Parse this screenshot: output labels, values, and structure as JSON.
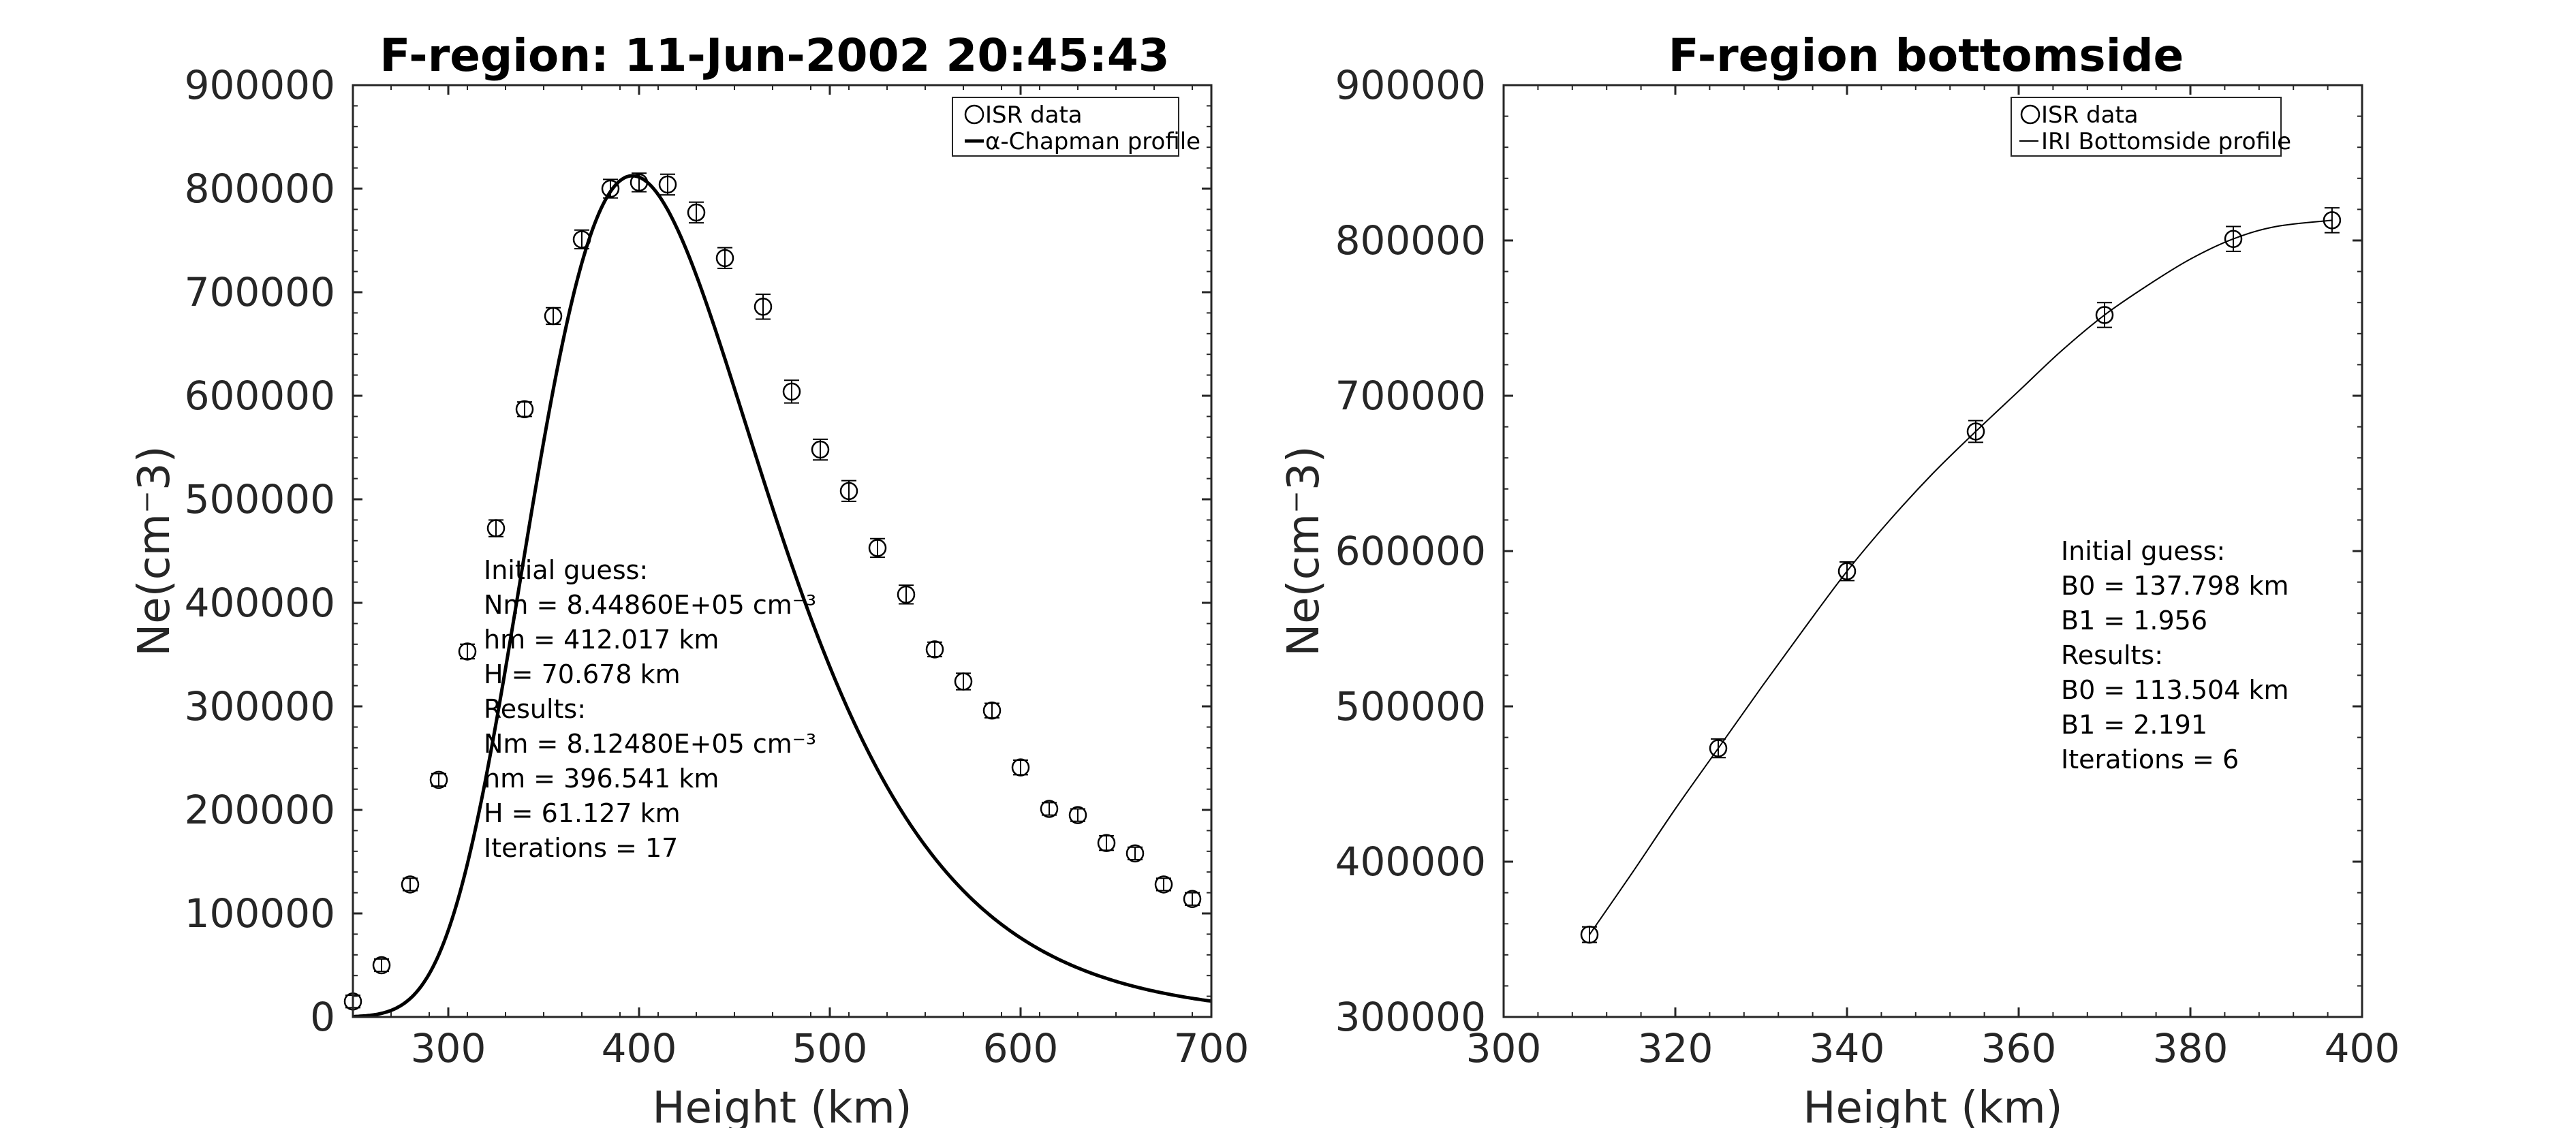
{
  "chart_data": [
    {
      "type": "scatter",
      "title": "F-region: 11-Jun-2002 20:45:43",
      "xlabel": "Height (km)",
      "ylabel": "Ne(cm⁻3)",
      "xlim": [
        250,
        700
      ],
      "ylim": [
        0,
        900000
      ],
      "xticks": [
        "300",
        "400",
        "500",
        "600",
        "700"
      ],
      "yticks": [
        "0",
        "100000",
        "200000",
        "300000",
        "400000",
        "500000",
        "600000",
        "700000",
        "800000",
        "900000"
      ],
      "legend_position": "top-right",
      "legend": [
        "ISR data",
        "α-Chapman profile"
      ],
      "series": [
        {
          "name": "ISR data",
          "marker": "open-circle-with-errorbar",
          "x": [
            250,
            265,
            280,
            295,
            310,
            325,
            340,
            355,
            370,
            385,
            400,
            415,
            430,
            445,
            465,
            480,
            495,
            510,
            525,
            540,
            555,
            570,
            585,
            600,
            615,
            630,
            645,
            660,
            675,
            690
          ],
          "y": [
            15000,
            50000,
            128000,
            229000,
            353000,
            472000,
            587000,
            677000,
            751000,
            800000,
            806000,
            804000,
            777000,
            733000,
            686000,
            604000,
            548000,
            508000,
            453000,
            408000,
            355000,
            324000,
            296000,
            241000,
            201000,
            195000,
            168000,
            158000,
            128000,
            114000
          ],
          "err": [
            6000,
            6000,
            6000,
            6000,
            7000,
            8000,
            7000,
            8000,
            9000,
            9000,
            9000,
            10000,
            10000,
            10000,
            12000,
            11000,
            10000,
            10000,
            9000,
            9000,
            7000,
            8000,
            7000,
            7000,
            6000,
            6000,
            7000,
            6000,
            6000,
            6000
          ]
        },
        {
          "name": "α-Chapman profile",
          "style": "line",
          "model": {
            "Nm": 812480,
            "hm": 396.541,
            "H": 61.127
          }
        }
      ],
      "annotation": [
        "Initial guess:",
        "Nm = 8.44860E+05 cm⁻³",
        "hm = 412.017 km",
        "H = 70.678 km",
        "Results:",
        "Nm = 8.12480E+05 cm⁻³",
        "hm = 396.541 km",
        "H = 61.127 km",
        "Iterations = 17"
      ]
    },
    {
      "type": "scatter",
      "title": "F-region bottomside",
      "xlabel": "Height (km)",
      "ylabel": "Ne(cm⁻3)",
      "xlim": [
        300,
        400
      ],
      "ylim": [
        300000,
        900000
      ],
      "xticks": [
        "300",
        "320",
        "340",
        "360",
        "380",
        "400"
      ],
      "yticks": [
        "300000",
        "400000",
        "500000",
        "600000",
        "700000",
        "800000",
        "900000"
      ],
      "legend_position": "top-right",
      "legend": [
        "ISR data",
        "IRI Bottomside profile"
      ],
      "series": [
        {
          "name": "ISR data",
          "marker": "open-circle-with-errorbar",
          "x": [
            310,
            325,
            340,
            355,
            370,
            385,
            396.5
          ],
          "y": [
            353000,
            473000,
            587000,
            677000,
            752000,
            801000,
            813000
          ],
          "err": [
            5000,
            6000,
            6000,
            7000,
            8000,
            8000,
            8000
          ]
        },
        {
          "name": "IRI Bottomside profile",
          "style": "line",
          "x": [
            310,
            315,
            320,
            325,
            330,
            335,
            340,
            345,
            350,
            355,
            360,
            365,
            370,
            375,
            380,
            385,
            390,
            396.5
          ],
          "y": [
            353000,
            393000,
            434000,
            473000,
            512000,
            550000,
            587000,
            620000,
            650000,
            677000,
            703000,
            729000,
            752000,
            771000,
            788000,
            801000,
            809000,
            813000
          ]
        }
      ],
      "annotation": [
        "Initial guess:",
        "B0 = 137.798 km",
        "B1 = 1.956",
        "Results:",
        "B0 = 113.504 km",
        "B1 = 2.191",
        "Iterations = 6"
      ]
    }
  ]
}
